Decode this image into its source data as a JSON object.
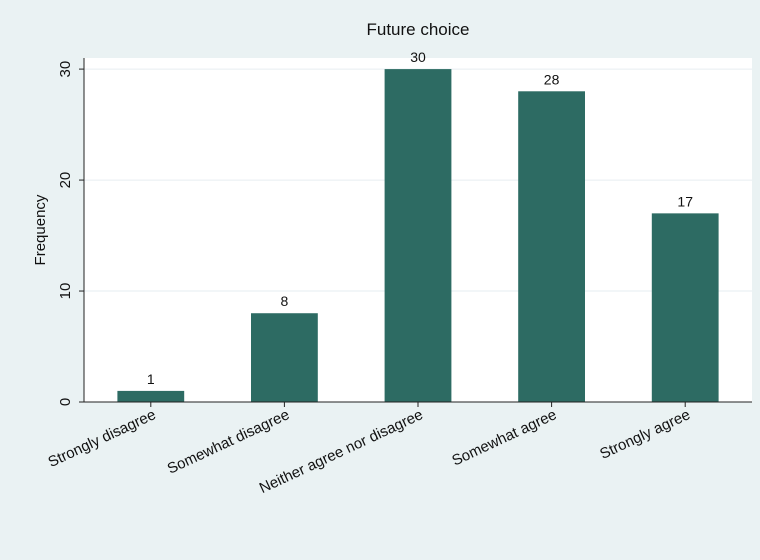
{
  "chart_data": {
    "type": "bar",
    "title": "Future choice",
    "xlabel": "",
    "ylabel": "Frequency",
    "categories": [
      "Strongly disagree",
      "Somewhat disagree",
      "Neither agree nor disagree",
      "Somewhat agree",
      "Strongly agree"
    ],
    "values": [
      1,
      8,
      30,
      28,
      17
    ],
    "data_labels": [
      "1",
      "8",
      "30",
      "28",
      "17"
    ],
    "yticks": [
      0,
      10,
      20,
      30
    ],
    "ylim": [
      0,
      31
    ],
    "grid": true,
    "legend": "none",
    "colors": {
      "bar": "#2d6b63",
      "plot_bg": "#ffffff",
      "page_bg": "#eaf2f3",
      "grid": "#e6eef0",
      "axis": "#222222"
    }
  }
}
